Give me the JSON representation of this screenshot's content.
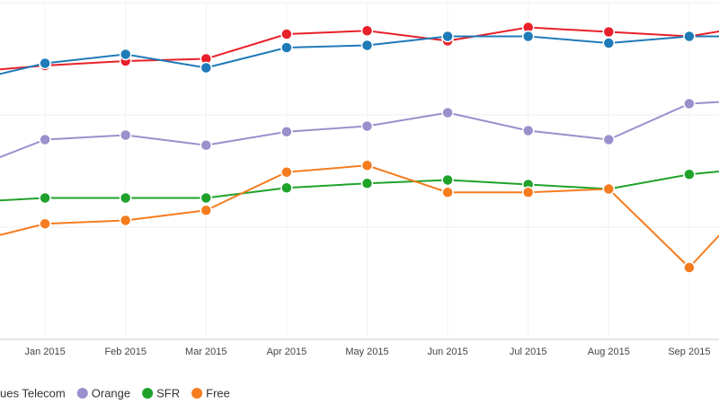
{
  "chart_data": {
    "type": "line",
    "categories": [
      null,
      "Jan 2015",
      "Feb 2015",
      "Mar 2015",
      "Apr 2015",
      "May 2015",
      "Jun 2015",
      "Jul 2015",
      "Aug 2015",
      "Sep 2015",
      null
    ],
    "ylim": [
      0,
      3
    ],
    "yticks": [
      0,
      1,
      2,
      3
    ],
    "grid": true,
    "series": [
      {
        "color": "#e8202a",
        "values": [
          2.38,
          2.44,
          2.48,
          2.5,
          2.72,
          2.75,
          2.66,
          2.78,
          2.74,
          2.7,
          2.82
        ]
      },
      {
        "name": "ues Telecom",
        "color": "#1f7ab8",
        "values": [
          2.29,
          2.46,
          2.54,
          2.42,
          2.6,
          2.62,
          2.7,
          2.7,
          2.64,
          2.7,
          2.7
        ]
      },
      {
        "name": "Orange",
        "color": "#9b8fcc",
        "values": [
          1.5,
          1.78,
          1.82,
          1.73,
          1.85,
          1.9,
          2.02,
          1.86,
          1.78,
          2.1,
          2.14
        ]
      },
      {
        "name": "SFR",
        "color": "#1fa22a",
        "values": [
          1.22,
          1.26,
          1.26,
          1.26,
          1.35,
          1.39,
          1.42,
          1.38,
          1.34,
          1.47,
          1.54
        ]
      },
      {
        "name": "Free",
        "color": "#f57c1f",
        "values": [
          0.85,
          1.03,
          1.06,
          1.15,
          1.49,
          1.55,
          1.31,
          1.31,
          1.34,
          0.64,
          1.41
        ]
      }
    ]
  }
}
